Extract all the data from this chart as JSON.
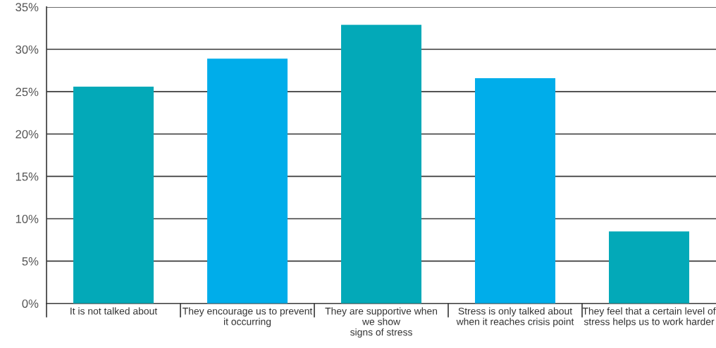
{
  "chart_data": {
    "type": "bar",
    "categories": [
      "It is not talked about",
      "They encourage us to prevent\nit occurring",
      "They are supportive when\nwe show\nsigns of stress",
      "Stress is only talked about\nwhen it reaches crisis point",
      "They feel that a certain level of\nstress helps us to work harder"
    ],
    "values": [
      25.6,
      28.9,
      32.9,
      26.6,
      8.5
    ],
    "colors": [
      "#03a9b8",
      "#00adea",
      "#03a9b8",
      "#00adea",
      "#03a9b8"
    ],
    "ylim": [
      0,
      35
    ],
    "yticks": [
      {
        "value": 0,
        "label": "0%"
      },
      {
        "value": 5,
        "label": "5%"
      },
      {
        "value": 10,
        "label": "10%"
      },
      {
        "value": 15,
        "label": "15%"
      },
      {
        "value": 20,
        "label": "20%"
      },
      {
        "value": 25,
        "label": "25%"
      },
      {
        "value": 30,
        "label": "30%"
      },
      {
        "value": 35,
        "label": "35%"
      }
    ],
    "grid": "y"
  }
}
